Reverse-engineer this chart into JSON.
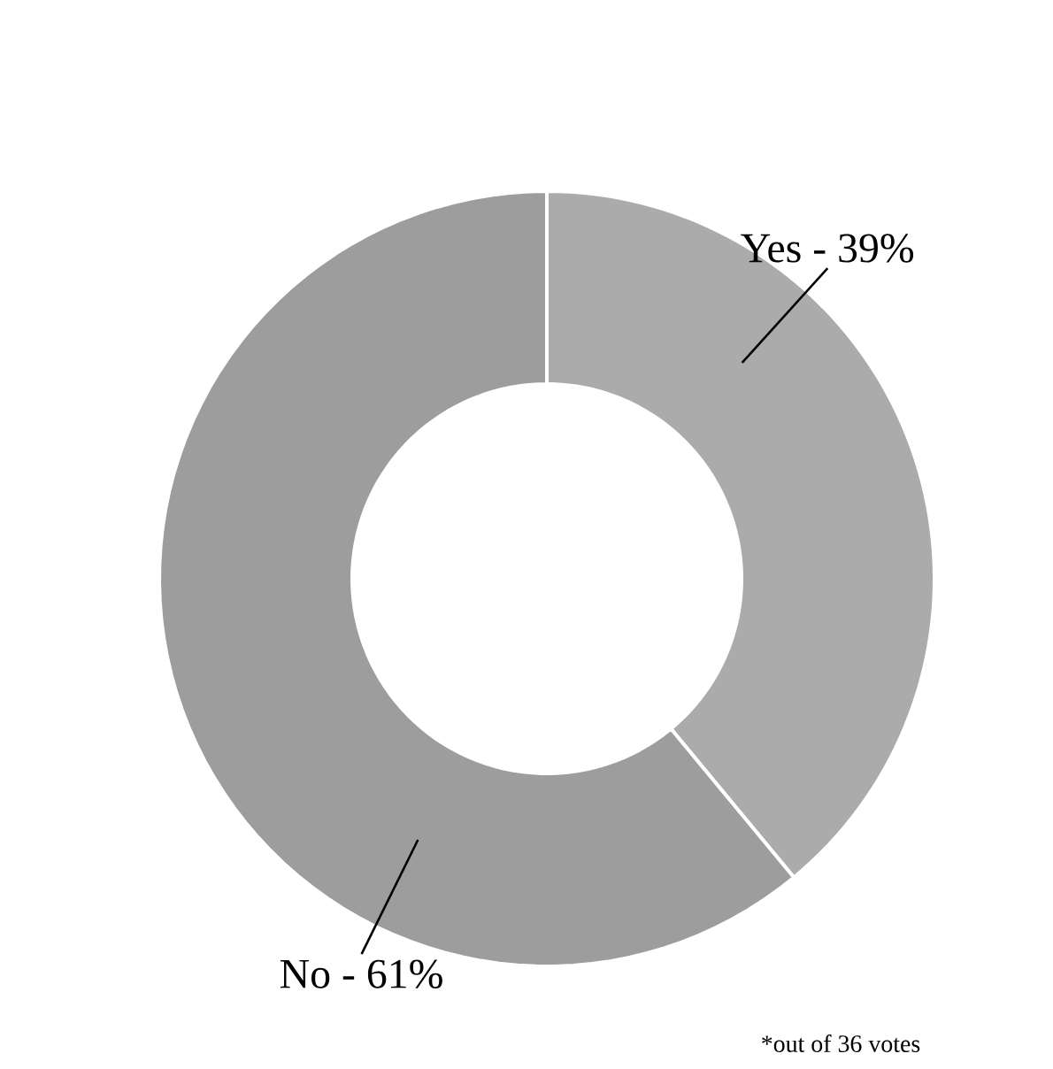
{
  "chart_data": {
    "type": "donut",
    "categories": [
      "Yes - 39%",
      "No - 61%"
    ],
    "values": [
      39,
      61
    ],
    "colors": [
      "#ababab",
      "#9d9d9d"
    ],
    "annotations": [
      "*out of 36 votes"
    ]
  }
}
